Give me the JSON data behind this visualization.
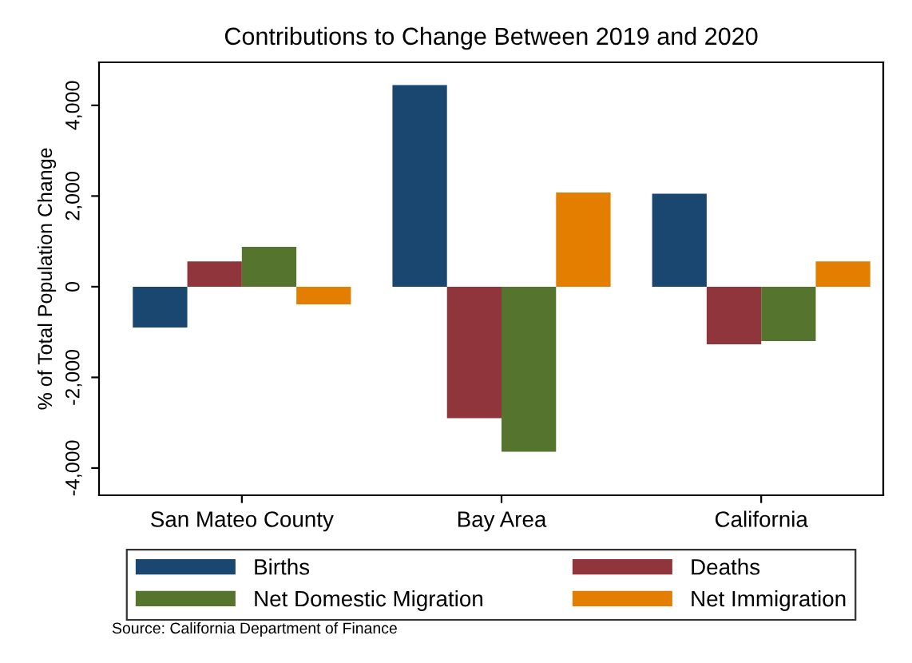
{
  "chart_data": {
    "type": "bar",
    "title": "Contributions to Change Between 2019 and 2020",
    "ylabel": "% of Total Population Change",
    "categories": [
      "San Mateo County",
      "Bay Area",
      "California"
    ],
    "series": [
      {
        "name": "Births",
        "color": "#1a476f",
        "values": [
          -900,
          4450,
          2050
        ]
      },
      {
        "name": "Deaths",
        "color": "#90353b",
        "values": [
          560,
          -2900,
          -1270
        ]
      },
      {
        "name": "Net Domestic Migration",
        "color": "#55752f",
        "values": [
          880,
          -3640,
          -1200
        ]
      },
      {
        "name": "Net Immigration",
        "color": "#e37e00",
        "values": [
          -390,
          2080,
          560
        ]
      }
    ],
    "ylim": [
      -4600,
      4950
    ],
    "yticks": [
      {
        "value": -4000,
        "label": "-4,000"
      },
      {
        "value": -2000,
        "label": "-2,000"
      },
      0,
      {
        "value": 2000,
        "label": "2,000"
      },
      {
        "value": 4000,
        "label": "4,000"
      }
    ],
    "legend": "bottom",
    "grid": false,
    "annotations": [
      "Source: California Department of Finance"
    ]
  }
}
